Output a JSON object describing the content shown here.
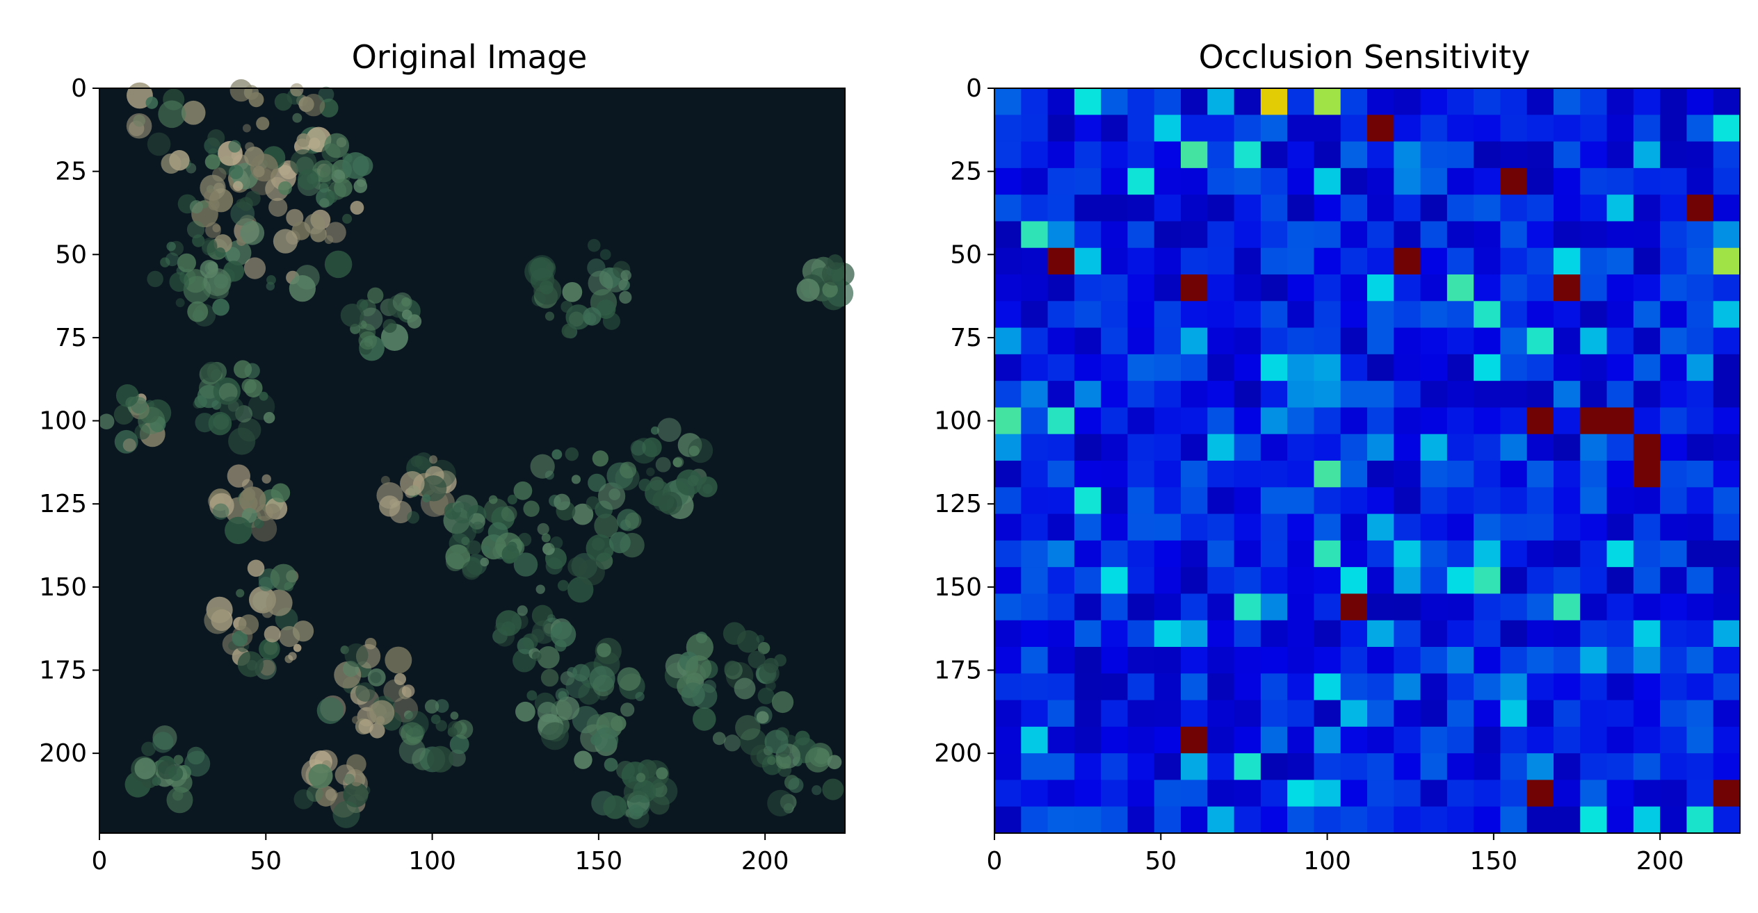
{
  "chart_data": [
    {
      "type": "heatmap",
      "title": "Original Image",
      "xlabel": "",
      "ylabel": "",
      "xlim": [
        0,
        224
      ],
      "ylim": [
        224,
        0
      ],
      "xticks": [
        0,
        50,
        100,
        150,
        200
      ],
      "yticks": [
        0,
        25,
        50,
        75,
        100,
        125,
        150,
        175,
        200
      ],
      "xtick_labels": [
        "0",
        "50",
        "100",
        "150",
        "200"
      ],
      "ytick_labels": [
        "0",
        "25",
        "50",
        "75",
        "100",
        "125",
        "150",
        "175",
        "200"
      ],
      "colors": {
        "background": "#0b1720",
        "vegetation": "#3f6a52",
        "bright_patch": "#b7aa8c"
      },
      "content": "satellite image of dense forest canopy"
    },
    {
      "type": "heatmap",
      "title": "Occlusion Sensitivity",
      "xlabel": "",
      "ylabel": "",
      "xlim": [
        0,
        224
      ],
      "ylim": [
        224,
        0
      ],
      "xticks": [
        0,
        50,
        100,
        150,
        200
      ],
      "yticks": [
        0,
        25,
        50,
        75,
        100,
        125,
        150,
        175,
        200
      ],
      "xtick_labels": [
        "0",
        "50",
        "100",
        "150",
        "200"
      ],
      "ytick_labels": [
        "0",
        "25",
        "50",
        "75",
        "100",
        "125",
        "150",
        "175",
        "200"
      ],
      "colormap": "jet",
      "grid_cell_size": 8,
      "grid_rows": 28,
      "grid_cols": 28,
      "value_range": [
        0,
        1
      ],
      "hotspots": [
        {
          "x": 81,
          "y": 3,
          "value": 0.65
        },
        {
          "x": 97,
          "y": 3,
          "value": 0.55
        },
        {
          "x": 57,
          "y": 17,
          "value": 0.45
        },
        {
          "x": 73,
          "y": 17,
          "value": 0.4
        },
        {
          "x": 217,
          "y": 49,
          "value": 0.55
        },
        {
          "x": 5,
          "y": 97,
          "value": 0.45
        },
        {
          "x": 97,
          "y": 113,
          "value": 0.45
        },
        {
          "x": 193,
          "y": 217,
          "value": 0.35
        }
      ],
      "max_cells": [
        {
          "x": 113,
          "y": 9
        },
        {
          "x": 153,
          "y": 25
        },
        {
          "x": 209,
          "y": 33
        },
        {
          "x": 17,
          "y": 49
        },
        {
          "x": 121,
          "y": 49
        },
        {
          "x": 57,
          "y": 57
        },
        {
          "x": 169,
          "y": 57
        },
        {
          "x": 161,
          "y": 97
        },
        {
          "x": 177,
          "y": 97
        },
        {
          "x": 185,
          "y": 97
        },
        {
          "x": 193,
          "y": 105
        },
        {
          "x": 193,
          "y": 113
        },
        {
          "x": 105,
          "y": 153
        },
        {
          "x": 57,
          "y": 193
        },
        {
          "x": 161,
          "y": 209
        },
        {
          "x": 217,
          "y": 209
        }
      ]
    }
  ]
}
